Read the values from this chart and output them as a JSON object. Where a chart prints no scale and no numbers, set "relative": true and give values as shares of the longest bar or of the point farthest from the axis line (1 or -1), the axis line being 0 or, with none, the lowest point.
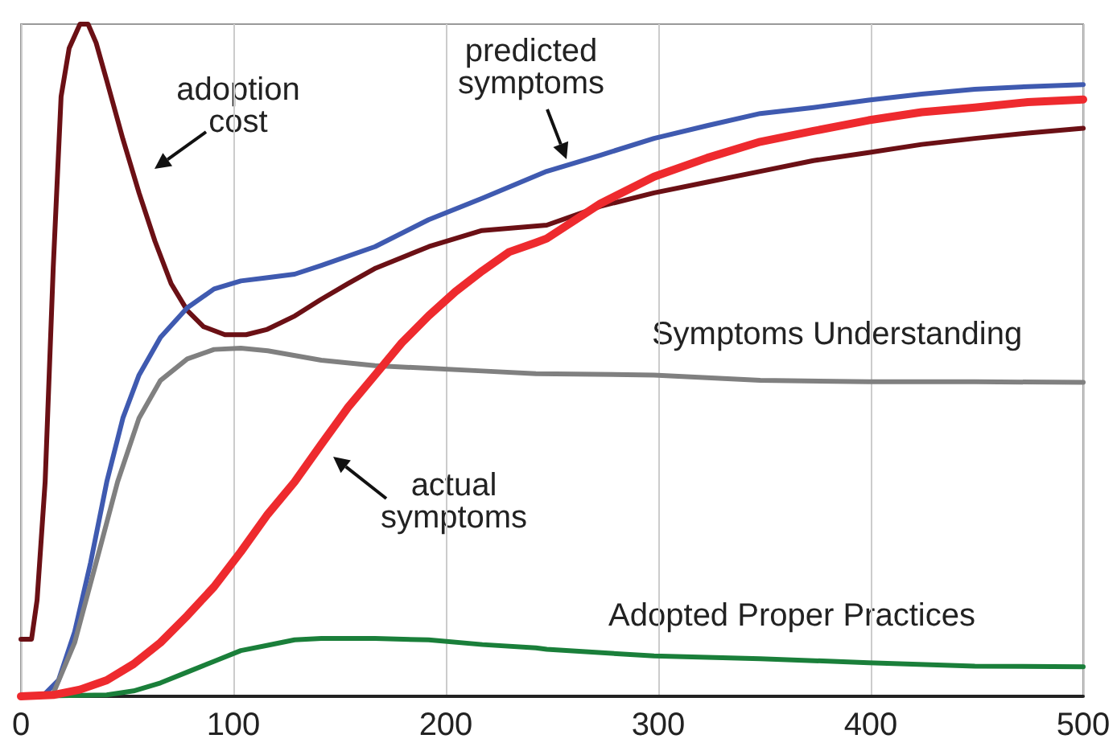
{
  "chart_data": {
    "type": "line",
    "relative": true,
    "xlim": [
      0,
      500
    ],
    "xticks": [
      0,
      100,
      200,
      300,
      400,
      500
    ],
    "grid": "x",
    "legend": false,
    "marker": "none",
    "line_style": "solid",
    "series": [
      {
        "name": "adoption cost",
        "color": "#6b1015",
        "x": [
          0,
          5,
          7.6,
          11.4,
          15.2,
          18.9,
          22.7,
          27.8,
          31.6,
          35.4,
          40.4,
          48,
          55.6,
          63.1,
          70.7,
          78.3,
          85.9,
          96,
          106,
          116,
          129,
          141,
          154,
          167,
          192,
          217,
          247.5,
          272.7,
          298,
          323,
          348,
          373,
          399,
          424,
          449,
          474,
          500
        ],
        "values": [
          0.085,
          0.085,
          0.143,
          0.319,
          0.637,
          0.892,
          0.964,
          1,
          1,
          0.972,
          0.916,
          0.829,
          0.749,
          0.677,
          0.614,
          0.574,
          0.55,
          0.538,
          0.538,
          0.546,
          0.566,
          0.59,
          0.614,
          0.637,
          0.669,
          0.693,
          0.701,
          0.729,
          0.749,
          0.765,
          0.781,
          0.797,
          0.809,
          0.821,
          0.83,
          0.838,
          0.845
        ]
      },
      {
        "name": "predicted symptoms",
        "color": "#3f5ab0",
        "x": [
          0,
          10.1,
          17.7,
          25.3,
          32.8,
          40.4,
          48,
          55.6,
          65.7,
          78.3,
          90.9,
          103.5,
          116.2,
          128.8,
          141.4,
          166.7,
          191.9,
          217.2,
          247.5,
          272.7,
          298,
          323,
          348,
          373,
          399,
          424,
          449,
          474,
          500
        ],
        "values": [
          0,
          0,
          0.024,
          0.096,
          0.199,
          0.319,
          0.414,
          0.478,
          0.534,
          0.578,
          0.606,
          0.618,
          0.623,
          0.628,
          0.641,
          0.669,
          0.709,
          0.741,
          0.781,
          0.805,
          0.83,
          0.849,
          0.867,
          0.876,
          0.887,
          0.896,
          0.903,
          0.907,
          0.91
        ]
      },
      {
        "name": "actual symptoms",
        "color": "#ee2a2e",
        "x": [
          0,
          15.2,
          27.8,
          40.4,
          53,
          65.7,
          78.3,
          90.9,
          103.5,
          116.2,
          128.8,
          141.4,
          154,
          166.7,
          179.3,
          191.9,
          204.5,
          217.2,
          229.8,
          242.4,
          247.5,
          272.7,
          298,
          323,
          348,
          373,
          399,
          424,
          449,
          474,
          500
        ],
        "values": [
          0,
          0.002,
          0.01,
          0.024,
          0.048,
          0.08,
          0.12,
          0.163,
          0.215,
          0.271,
          0.319,
          0.375,
          0.43,
          0.478,
          0.526,
          0.566,
          0.602,
          0.633,
          0.661,
          0.675,
          0.681,
          0.733,
          0.773,
          0.801,
          0.825,
          0.841,
          0.857,
          0.869,
          0.876,
          0.884,
          0.888
        ]
      },
      {
        "name": "Symptoms Understanding",
        "color": "#808080",
        "x": [
          0,
          15.2,
          25.3,
          35.4,
          45.5,
          55.6,
          65.7,
          78.3,
          90.9,
          103.5,
          116.2,
          141.4,
          166.7,
          191.9,
          217.2,
          242.4,
          298,
          348,
          399,
          449,
          500
        ],
        "values": [
          0,
          0.004,
          0.08,
          0.199,
          0.319,
          0.414,
          0.47,
          0.502,
          0.516,
          0.518,
          0.514,
          0.5,
          0.492,
          0.488,
          0.484,
          0.48,
          0.478,
          0.47,
          0.468,
          0.468,
          0.467
        ]
      },
      {
        "name": "Adopted Proper Practices",
        "color": "#1a7f3a",
        "x": [
          0,
          40.4,
          53,
          65.7,
          78.3,
          90.9,
          103.5,
          116.2,
          128.8,
          141.4,
          166.7,
          191.9,
          217.2,
          242.4,
          247.5,
          298,
          348,
          399,
          449,
          500
        ],
        "values": [
          0,
          0.002,
          0.008,
          0.02,
          0.036,
          0.052,
          0.068,
          0.076,
          0.084,
          0.086,
          0.086,
          0.084,
          0.077,
          0.072,
          0.07,
          0.06,
          0.056,
          0.05,
          0.045,
          0.044
        ]
      }
    ]
  }
}
